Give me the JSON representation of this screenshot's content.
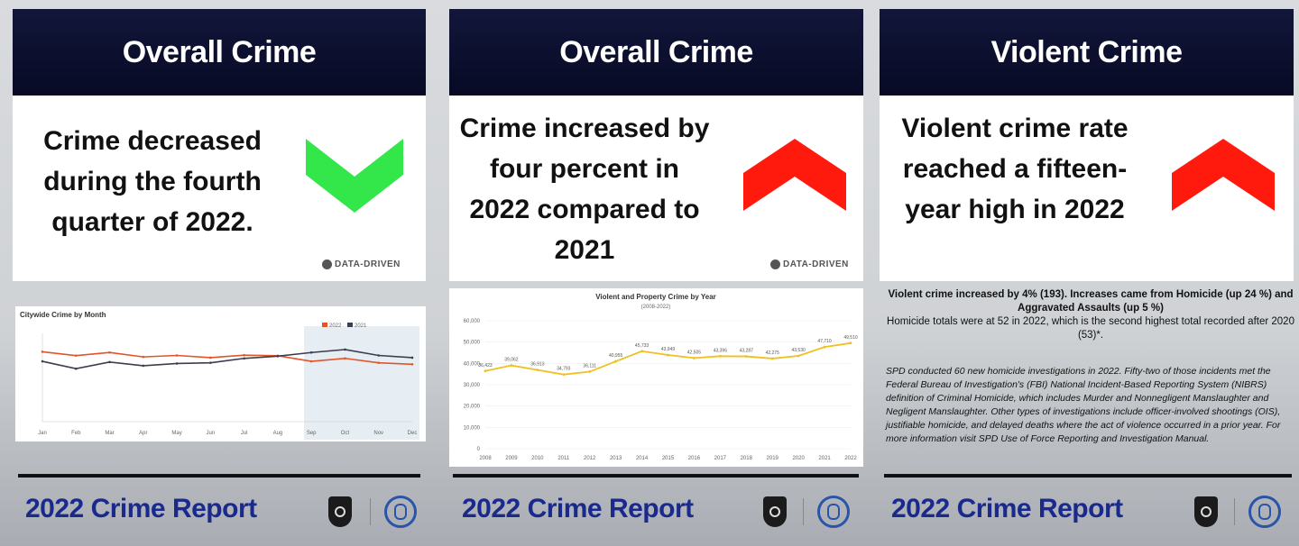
{
  "colors": {
    "header_bg": "#0b0f30",
    "footer_title": "#1a2a8c",
    "arrow_down": "#33e64a",
    "arrow_up": "#ff1a0d",
    "series_2022": "#e2542a",
    "series_2021": "#3a3f4f",
    "series_trend": "#f0c020"
  },
  "cards": [
    {
      "header": "Overall Crime",
      "headline": "Crime decreased during the fourth quarter of 2022.",
      "arrow_icon": "chevron-down-icon",
      "watermark": "DATA-DRIVEN",
      "footer": "2022 Crime Report"
    },
    {
      "header": "Overall Crime",
      "headline": "Crime increased by four percent in 2022 compared to 2021",
      "arrow_icon": "chevron-up-icon",
      "watermark": "DATA-DRIVEN",
      "footer": "2022 Crime Report"
    },
    {
      "header": "Violent Crime",
      "headline": "Violent crime rate reached a fifteen-year high in 2022",
      "arrow_icon": "chevron-up-icon",
      "summary_bold": "Violent crime increased by 4% (193). Increases came from Homicide (up 24 %) and Aggravated Assaults (up 5 %)",
      "summary_plain": "Homicide totals were at 52 in 2022, which is the second highest total recorded after 2020 (53)*.",
      "body": "SPD conducted 60 new homicide investigations in 2022. Fifty-two of those incidents met the Federal Bureau of Investigation's (FBI) National Incident-Based Reporting System (NIBRS) definition of Criminal Homicide, which includes Murder and Nonnegligent Manslaughter and Negligent Manslaughter. Other types of investigations include officer-involved shootings (OIS), justifiable homicide, and delayed deaths where the act of violence occurred in a prior year. For more information visit SPD Use of Force Reporting and Investigation Manual.",
      "footer": "2022 Crime Report"
    }
  ],
  "chart_data": [
    {
      "type": "line",
      "title": "Citywide Crime by Month",
      "categories": [
        "Jan",
        "Feb",
        "Mar",
        "Apr",
        "May",
        "Jun",
        "Jul",
        "Aug",
        "Sep",
        "Oct",
        "Nov",
        "Dec"
      ],
      "series": [
        {
          "name": "2022",
          "values": [
            4750,
            4490,
            4700,
            4400,
            4500,
            4350,
            4520,
            4480,
            4100,
            4300,
            4000,
            3900
          ]
        },
        {
          "name": "2021",
          "values": [
            4100,
            3600,
            4050,
            3800,
            3950,
            4000,
            4300,
            4450,
            4700,
            4900,
            4500,
            4350
          ]
        }
      ],
      "ylim": [
        0,
        6000
      ],
      "legend": "top-right"
    },
    {
      "type": "line",
      "title": "Violent and Property Crime by Year",
      "subtitle": "(2008-2022)",
      "x": [
        "2008",
        "2009",
        "2010",
        "2011",
        "2012",
        "2013",
        "2014",
        "2015",
        "2016",
        "2017",
        "2018",
        "2019",
        "2020",
        "2021",
        "2022"
      ],
      "series": [
        {
          "values": [
            36423,
            39062,
            36913,
            34793,
            36111,
            40955,
            45733,
            43949,
            42505,
            43396,
            43287,
            42275,
            43530,
            47710,
            49510
          ]
        }
      ],
      "y_ticks": [
        "60,000",
        "50,000",
        "40,000",
        "30,000",
        "20,000",
        "10,000",
        "0"
      ],
      "data_labels": [
        "36,423",
        "39,062",
        "36,913",
        "34,793",
        "36,111",
        "40,955",
        "45,733",
        "43,949",
        "42,505",
        "43,396",
        "43,287",
        "42,275",
        "43,530",
        "47,710",
        "49,510"
      ],
      "ylim": [
        0,
        60000
      ]
    }
  ]
}
